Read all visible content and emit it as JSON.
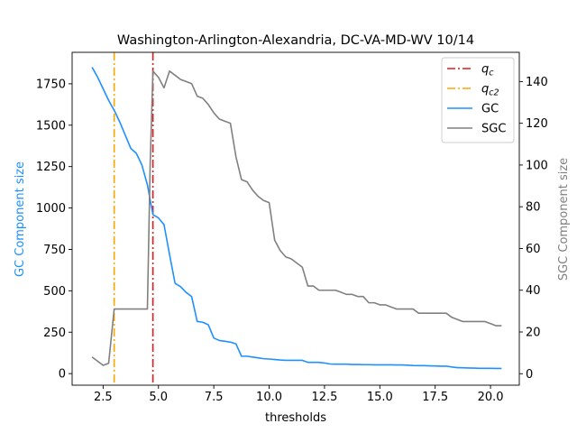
{
  "chart_data": {
    "type": "line",
    "title": "Washington-Arlington-Alexandria, DC-VA-MD-WV 10/14",
    "xlabel": "thresholds",
    "ylabel_left": "GC Component size",
    "ylabel_right": "SGC Component size",
    "xlim": [
      1.1,
      21.3
    ],
    "ylim_left": [
      -70,
      1940
    ],
    "ylim_right": [
      -5.5,
      154
    ],
    "x_ticks": [
      2.5,
      5.0,
      7.5,
      10.0,
      12.5,
      15.0,
      17.5,
      20.0
    ],
    "x_tick_labels": [
      "2.5",
      "5.0",
      "7.5",
      "10.0",
      "12.5",
      "15.0",
      "17.5",
      "20.0"
    ],
    "y_left_ticks": [
      0,
      250,
      500,
      750,
      1000,
      1250,
      1500,
      1750
    ],
    "y_left_tick_labels": [
      "0",
      "250",
      "500",
      "750",
      "1000",
      "1250",
      "1500",
      "1750"
    ],
    "y_right_ticks": [
      0,
      20,
      40,
      60,
      80,
      100,
      120,
      140
    ],
    "y_right_tick_labels": [
      "0",
      "20",
      "40",
      "60",
      "80",
      "100",
      "120",
      "140"
    ],
    "grid": false,
    "legend_position": "top-right",
    "vlines": [
      {
        "name": "q_c",
        "label_main": "q",
        "label_sub": "c",
        "x": 4.75,
        "color": "#e31a1c",
        "style": "dashdot"
      },
      {
        "name": "q_c2",
        "label_main": "q",
        "label_sub": "c2",
        "x": 3.0,
        "color": "#ffa500",
        "style": "dashdot"
      }
    ],
    "series": [
      {
        "name": "GC",
        "axis": "left",
        "color": "#1e90ff",
        "x": [
          2.0,
          2.25,
          2.5,
          2.75,
          3.0,
          3.25,
          3.5,
          3.75,
          4.0,
          4.25,
          4.5,
          4.625,
          4.75,
          5.0,
          5.25,
          5.5,
          5.75,
          6.0,
          6.25,
          6.5,
          6.75,
          7.0,
          7.25,
          7.5,
          7.75,
          8.0,
          8.25,
          8.5,
          8.75,
          9.0,
          9.25,
          9.5,
          9.75,
          10.0,
          10.25,
          10.5,
          10.75,
          11.0,
          11.25,
          11.5,
          11.75,
          12.0,
          12.25,
          12.5,
          12.75,
          13.0,
          13.25,
          13.5,
          13.75,
          14.0,
          14.25,
          14.5,
          14.75,
          15.0,
          15.25,
          15.5,
          15.75,
          16.0,
          16.25,
          16.5,
          16.75,
          17.0,
          17.25,
          17.5,
          17.75,
          18.0,
          18.25,
          18.5,
          18.75,
          19.0,
          19.25,
          19.5,
          19.75,
          20.0,
          20.25,
          20.5
        ],
        "values": [
          1850,
          1790,
          1720,
          1650,
          1590,
          1520,
          1440,
          1360,
          1330,
          1260,
          1140,
          1050,
          960,
          940,
          900,
          720,
          545,
          525,
          490,
          465,
          315,
          310,
          295,
          215,
          200,
          195,
          190,
          180,
          105,
          105,
          100,
          95,
          90,
          88,
          85,
          82,
          80,
          80,
          80,
          80,
          68,
          68,
          68,
          64,
          58,
          57,
          57,
          57,
          55,
          55,
          54,
          54,
          53,
          53,
          53,
          53,
          52,
          52,
          51,
          49,
          48,
          48,
          47,
          46,
          45,
          45,
          40,
          36,
          35,
          34,
          33,
          32,
          32,
          32,
          31,
          31
        ]
      },
      {
        "name": "SGC",
        "axis": "right",
        "color": "#808080",
        "x": [
          2.0,
          2.25,
          2.5,
          2.75,
          3.0,
          3.25,
          3.5,
          3.75,
          4.0,
          4.25,
          4.5,
          4.625,
          4.75,
          5.0,
          5.25,
          5.5,
          5.75,
          6.0,
          6.25,
          6.5,
          6.75,
          7.0,
          7.25,
          7.5,
          7.75,
          8.0,
          8.25,
          8.5,
          8.75,
          9.0,
          9.25,
          9.5,
          9.75,
          10.0,
          10.25,
          10.5,
          10.75,
          11.0,
          11.25,
          11.5,
          11.75,
          12.0,
          12.25,
          12.5,
          12.75,
          13.0,
          13.25,
          13.5,
          13.75,
          14.0,
          14.25,
          14.5,
          14.75,
          15.0,
          15.25,
          15.5,
          15.75,
          16.0,
          16.25,
          16.5,
          16.75,
          17.0,
          17.25,
          17.5,
          17.75,
          18.0,
          18.25,
          18.5,
          18.75,
          19.0,
          19.25,
          19.5,
          19.75,
          20.0,
          20.25,
          20.5
        ],
        "values": [
          8,
          6,
          4,
          5,
          31,
          31,
          31,
          31,
          31,
          31,
          31,
          100,
          145,
          142,
          137,
          145,
          143,
          141,
          140,
          139,
          133,
          132,
          129,
          125,
          122,
          121,
          120,
          104,
          93,
          92,
          88,
          85,
          83,
          82,
          64,
          59,
          56,
          55,
          53,
          51,
          42,
          42,
          40,
          40,
          40,
          40,
          39,
          38,
          38,
          37,
          37,
          34,
          34,
          33,
          33,
          32,
          31,
          31,
          31,
          31,
          29,
          29,
          29,
          29,
          29,
          29,
          27,
          26,
          25,
          25,
          25,
          25,
          25,
          24,
          23,
          23
        ]
      }
    ]
  }
}
